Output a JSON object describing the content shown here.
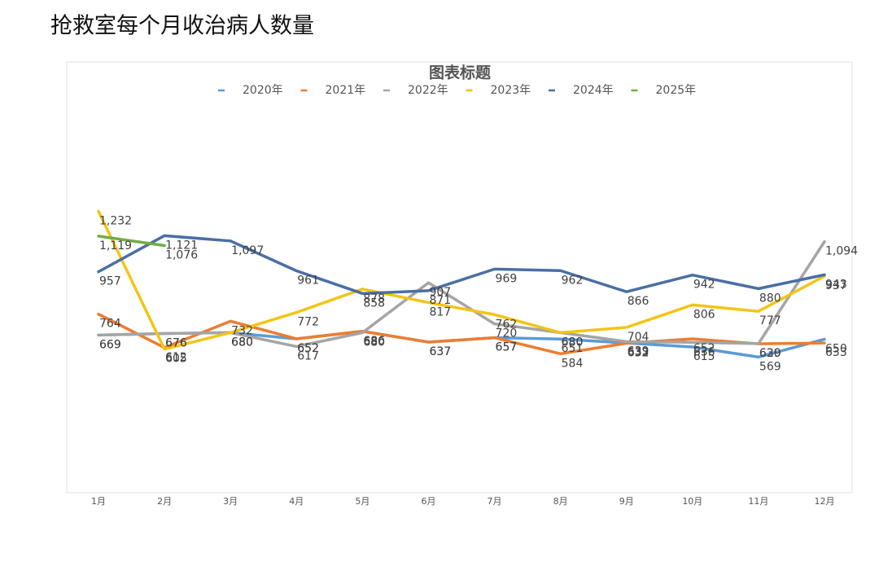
{
  "page_title": "抢救室每个月收治病人数量",
  "chart_data": {
    "type": "line",
    "title": "图表标题",
    "categories": [
      "1月",
      "2月",
      "3月",
      "4月",
      "5月",
      "6月",
      "7月",
      "8月",
      "9月",
      "10月",
      "11月",
      "12月"
    ],
    "ylim": [
      0,
      1600
    ],
    "legend": "top",
    "grid": false,
    "series": [
      {
        "name": "2020年",
        "color": "#5b9bd5",
        "values": [
          669,
          676,
          680,
          652,
          686,
          637,
          657,
          651,
          633,
          615,
          569,
          650
        ]
      },
      {
        "name": "2021年",
        "color": "#ed7d31",
        "values": [
          764,
          612,
          732,
          652,
          686,
          637,
          657,
          584,
          632,
          652,
          629,
          633
        ]
      },
      {
        "name": "2022年",
        "color": "#a5a5a5",
        "values": [
          669,
          676,
          680,
          617,
          680,
          907,
          720,
          680,
          639,
          636,
          630,
          1094
        ],
        "value_labels": [
          "669",
          "676",
          "680",
          "617",
          "680",
          "907",
          "720",
          "680",
          "639",
          "636",
          "630",
          "1,094"
        ]
      },
      {
        "name": "2023年",
        "color": "#f2c515",
        "values": [
          1232,
          605,
          680,
          772,
          878,
          817,
          762,
          680,
          704,
          806,
          777,
          937
        ],
        "value_labels": [
          "1,232",
          "605",
          "680",
          "772",
          "878",
          "817",
          "762",
          "680",
          "704",
          "806",
          "777",
          "937"
        ]
      },
      {
        "name": "2024年",
        "color": "#4a6fa5",
        "values": [
          957,
          1121,
          1097,
          961,
          858,
          871,
          969,
          962,
          866,
          942,
          880,
          943
        ],
        "value_labels": [
          "957",
          "1,121",
          "1,097",
          "961",
          "858",
          "871",
          "969",
          "962",
          "866",
          "942",
          "880",
          "943"
        ]
      },
      {
        "name": "2025年",
        "color": "#70ad47",
        "values": [
          1119,
          1076,
          null,
          null,
          null,
          null,
          null,
          null,
          null,
          null,
          null,
          null
        ],
        "value_labels": [
          "1,119",
          "1,076",
          null,
          null,
          null,
          null,
          null,
          null,
          null,
          null,
          null,
          null
        ]
      }
    ]
  }
}
